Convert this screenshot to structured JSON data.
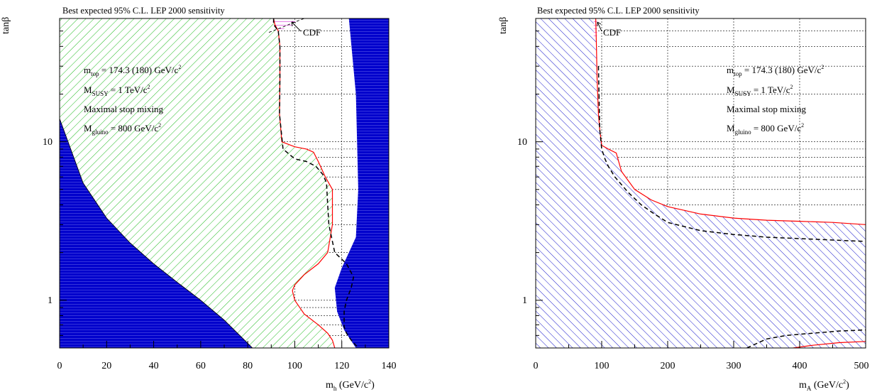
{
  "chart_data": [
    {
      "type": "area",
      "title": "Best expected 95% C.L. LEP 2000 sensitivity",
      "xlabel": "m_h (GeV/c^2)",
      "ylabel": "tanβ",
      "xlim": [
        0,
        140
      ],
      "ylim": [
        0.5,
        60
      ],
      "yscale": "log",
      "grid": true,
      "x_ticks": [
        "0",
        "20",
        "40",
        "60",
        "80",
        "100",
        "120",
        "140"
      ],
      "y_ticks": [
        "1",
        "10"
      ],
      "annotations": [
        "m_top = 174.3 (180) GeV/c^2",
        "M_SUSY = 1 TeV/c^2",
        "Maximal stop mixing",
        "M_gluino = 800 GeV/c^2",
        "CDF"
      ],
      "colors": {
        "theory_excluded": "#0000cc",
        "lep_excluded_hatch": "#00bb00",
        "cdf_hatch": "#cc00cc",
        "observed_line": "#ff0000",
        "expected_line": "#000000"
      },
      "series": [
        {
          "x": [
            0,
            10,
            20,
            30,
            40,
            50,
            60,
            70,
            82
          ],
          "y": [
            14,
            5.5,
            3.3,
            2.3,
            1.7,
            1.3,
            1.0,
            0.75,
            0.5
          ]
        },
        {
          "x": [
            91,
            91.5,
            93,
            93.7,
            93.7,
            93.5,
            94.5,
            100,
            105,
            108,
            110,
            113,
            116,
            116,
            114,
            110,
            104,
            100,
            99,
            100,
            104,
            110,
            114,
            116,
            117
          ],
          "y": [
            60,
            55,
            50,
            40,
            25,
            15,
            10,
            9.3,
            9.0,
            8.6,
            7.5,
            6.0,
            5.0,
            3.0,
            2.0,
            1.7,
            1.45,
            1.25,
            1.15,
            1.0,
            0.82,
            0.7,
            0.62,
            0.56,
            0.5
          ]
        },
        {
          "x": [
            91,
            91,
            93,
            93.7,
            93.7,
            93.5,
            95,
            100,
            105,
            109,
            112,
            113.5,
            114,
            114.5,
            117,
            122,
            125,
            124,
            122,
            121,
            121,
            121,
            122,
            124,
            127
          ],
          "y": [
            60,
            55,
            50,
            40,
            25,
            15,
            9.0,
            7.8,
            7.5,
            7.0,
            6.2,
            5.5,
            4.0,
            3.0,
            2.0,
            1.7,
            1.4,
            1.2,
            1.0,
            0.85,
            0.75,
            0.68,
            0.62,
            0.56,
            0.5
          ]
        },
        {
          "x": [
            123,
            126,
            127,
            126,
            123,
            120,
            117,
            118,
            121,
            126,
            140,
            140,
            132
          ],
          "y": [
            60,
            20,
            5,
            2.5,
            2.0,
            1.6,
            1.2,
            0.85,
            0.65,
            0.5,
            0.5,
            60,
            60
          ]
        }
      ]
    },
    {
      "type": "area",
      "title": "Best expected 95% C.L. LEP 2000 sensitivity",
      "xlabel": "m_A (GeV/c^2)",
      "ylabel": "tanβ",
      "xlim": [
        0,
        500
      ],
      "ylim": [
        0.5,
        60
      ],
      "yscale": "log",
      "grid": true,
      "x_ticks": [
        "0",
        "100",
        "200",
        "300",
        "400",
        "500"
      ],
      "y_ticks": [
        "1",
        "10"
      ],
      "annotations": [
        "m_top = 174.3 (180) GeV/c^2",
        "M_SUSY = 1 TeV/c^2",
        "Maximal stop mixing",
        "M_gluino = 800 GeV/c^2",
        "CDF"
      ],
      "colors": {
        "lep_excluded_hatch": "#0000cc",
        "cdf_hatch": "#cc00cc",
        "observed_line": "#ff0000",
        "expected_line": "#000000"
      },
      "series": [
        {
          "x": [
            91,
            92,
            93,
            95,
            97,
            100,
            110,
            122,
            130,
            150,
            175,
            200,
            250,
            300,
            350,
            400,
            450,
            500
          ],
          "y": [
            60,
            40,
            25,
            15,
            12,
            9.5,
            9.0,
            8.5,
            6.5,
            5.0,
            4.3,
            3.9,
            3.5,
            3.3,
            3.2,
            3.15,
            3.1,
            3.0
          ]
        },
        {
          "x": [
            95,
            97,
            100,
            105,
            110,
            120,
            140,
            160,
            180,
            200,
            250,
            300,
            350,
            400,
            450,
            500
          ],
          "y": [
            30,
            12,
            9,
            7.8,
            7.0,
            6.0,
            4.8,
            4.0,
            3.5,
            3.1,
            2.75,
            2.6,
            2.5,
            2.45,
            2.4,
            2.35
          ]
        },
        {
          "x": [
            320,
            350,
            380,
            420,
            460,
            500
          ],
          "y": [
            0.5,
            0.57,
            0.6,
            0.62,
            0.64,
            0.65
          ]
        },
        {
          "x": [
            390,
            420,
            460,
            500
          ],
          "y": [
            0.5,
            0.52,
            0.54,
            0.55
          ]
        }
      ]
    }
  ]
}
